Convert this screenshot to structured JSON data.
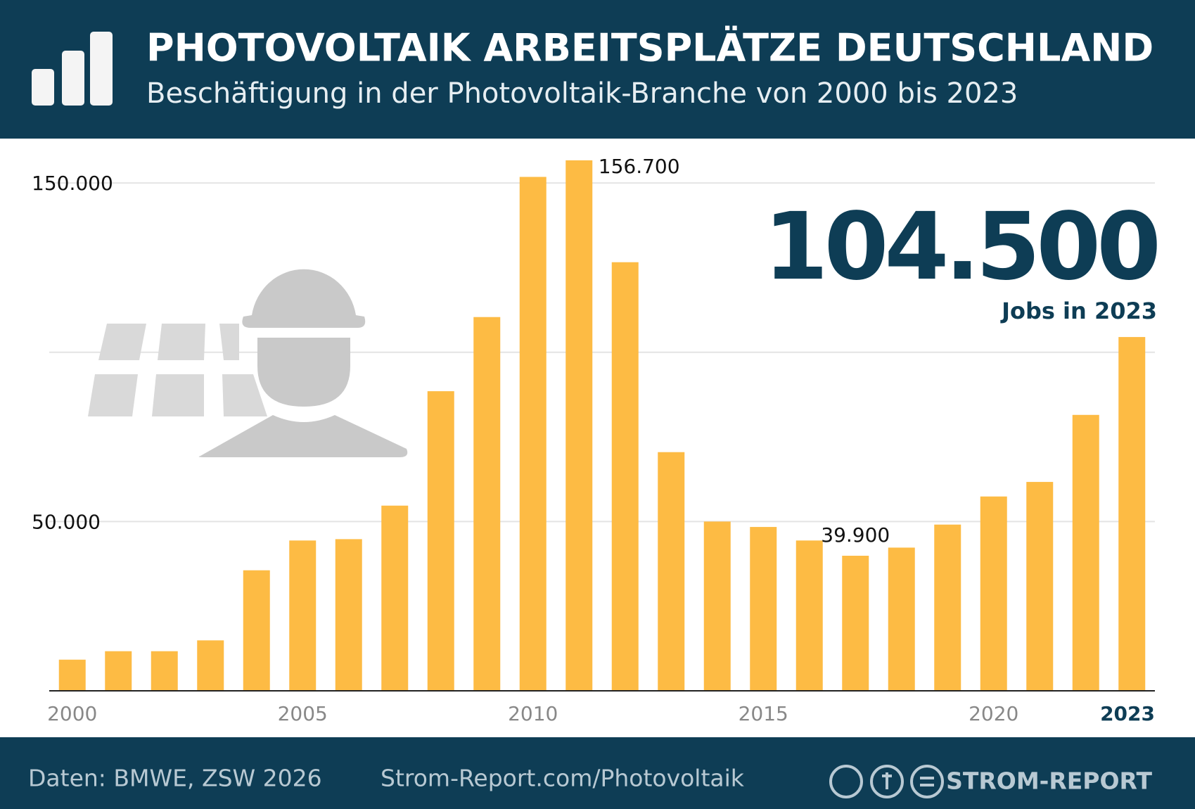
{
  "header": {
    "title": "PHOTOVOLTAIK ARBEITSPLÄTZE DEUTSCHLAND",
    "subtitle": "Beschäftigung in der Photovoltaik-Branche von 2000 bis 2023"
  },
  "chart_data": {
    "type": "bar",
    "x": [
      2000,
      2001,
      2002,
      2003,
      2004,
      2005,
      2006,
      2007,
      2008,
      2009,
      2010,
      2011,
      2012,
      2013,
      2014,
      2015,
      2016,
      2017,
      2018,
      2019,
      2020,
      2021,
      2022,
      2023
    ],
    "values": [
      9200,
      11700,
      11700,
      14900,
      35600,
      44400,
      44800,
      54700,
      88500,
      110400,
      151800,
      156700,
      126600,
      70500,
      50000,
      48400,
      44400,
      39900,
      42300,
      49100,
      57400,
      61700,
      81500,
      104500
    ],
    "value_labels": [
      null,
      null,
      null,
      null,
      null,
      null,
      null,
      null,
      null,
      null,
      null,
      "156.700",
      null,
      null,
      null,
      null,
      null,
      "39.900",
      null,
      null,
      null,
      null,
      null,
      null
    ],
    "color": "#fdbb44",
    "xlim": [
      1999.5,
      2023.5
    ],
    "xticks": [
      2000,
      2005,
      2010,
      2015,
      2020,
      2023
    ],
    "ylim": [
      0,
      160000
    ],
    "yticks": [
      {
        "value": 50000,
        "label": "50.000"
      },
      {
        "value": 150000,
        "label": "150.000"
      }
    ],
    "grid": true,
    "grid_lines": [
      50000,
      100000,
      150000
    ],
    "highlight": {
      "value": "104.500",
      "label": "Jobs in 2023"
    }
  },
  "footer": {
    "source": "Daten: BMWE, ZSW 2026",
    "url": "Strom-Report.com/Photovoltaik",
    "brand": "STROM-REPORT"
  }
}
